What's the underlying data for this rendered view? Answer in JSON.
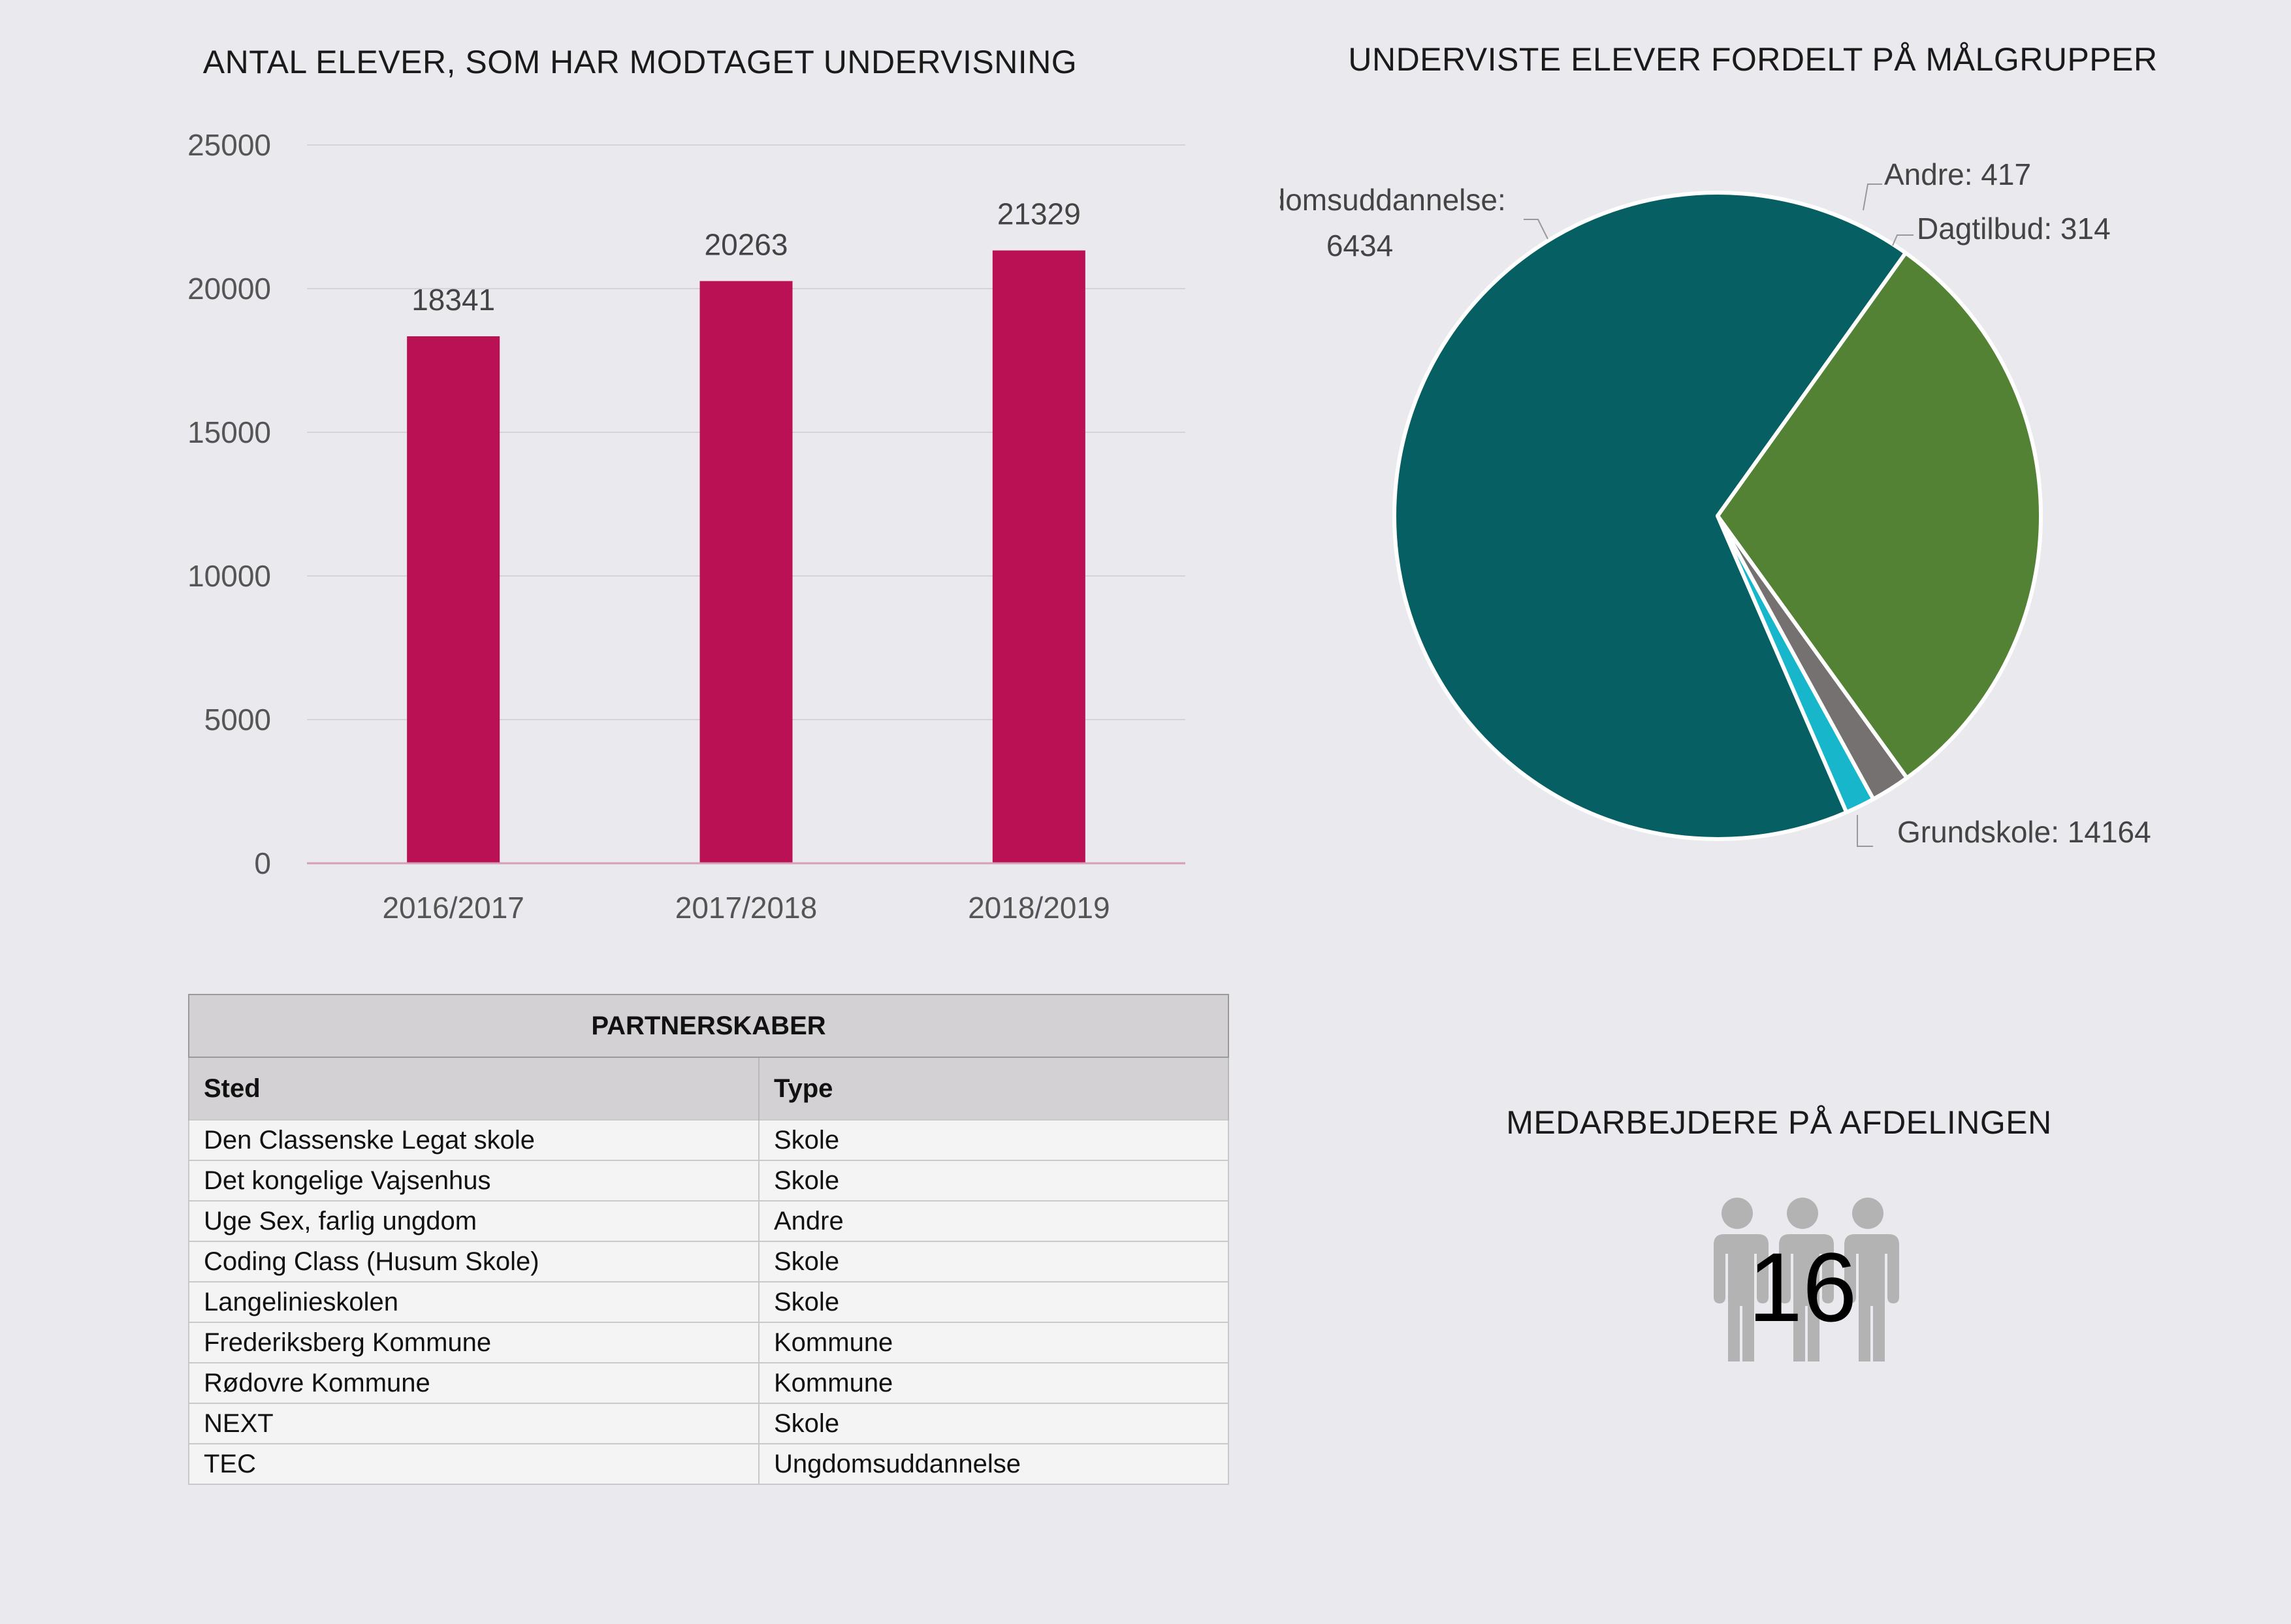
{
  "bar_chart": {
    "title": "ANTAL ELEVER, SOM HAR MODTAGET UNDERVISNING"
  },
  "pie_chart": {
    "title": "UNDERVISTE ELEVER FORDELT PÅ MÅLGRUPPER"
  },
  "chart_data": [
    {
      "type": "bar",
      "title": "ANTAL ELEVER, SOM HAR MODTAGET UNDERVISNING",
      "categories": [
        "2016/2017",
        "2017/2018",
        "2018/2019"
      ],
      "values": [
        18341,
        20263,
        21329
      ],
      "ylim": [
        0,
        25000
      ],
      "yticks": [
        "0",
        "5000",
        "10000",
        "15000",
        "20000",
        "25000"
      ],
      "grid": true,
      "color": "#b91154"
    },
    {
      "type": "pie",
      "title": "UNDERVISTE ELEVER FORDELT PÅ MÅLGRUPPER",
      "slices": [
        {
          "label": "Grundskole:",
          "value": 14164,
          "color": "#065f63"
        },
        {
          "label": "Ungdomsuddannelse:",
          "value": 6434,
          "color": "#538234"
        },
        {
          "label": "Andre:",
          "value": 417,
          "color": "#767171"
        },
        {
          "label": "Dagtilbud:",
          "value": 314,
          "color": "#17b6cb"
        }
      ]
    }
  ],
  "table": {
    "caption": "PARTNERSKABER",
    "headers": [
      "Sted",
      "Type"
    ],
    "rows": [
      [
        "Den Classenske Legat skole",
        "Skole"
      ],
      [
        "Det kongelige Vajsenhus",
        "Skole"
      ],
      [
        "Uge Sex, farlig ungdom",
        "Andre"
      ],
      [
        "Coding Class (Husum Skole)",
        "Skole"
      ],
      [
        "Langelinieskolen",
        "Skole"
      ],
      [
        "Frederiksberg Kommune",
        "Kommune"
      ],
      [
        "Rødovre Kommune",
        "Kommune"
      ],
      [
        "NEXT",
        "Skole"
      ],
      [
        "TEC",
        "Ungdomsuddannelse"
      ]
    ]
  },
  "staff": {
    "title": "MEDARBEJDERE PÅ AFDELINGEN",
    "count": "16",
    "icon": "people-group-icon"
  }
}
